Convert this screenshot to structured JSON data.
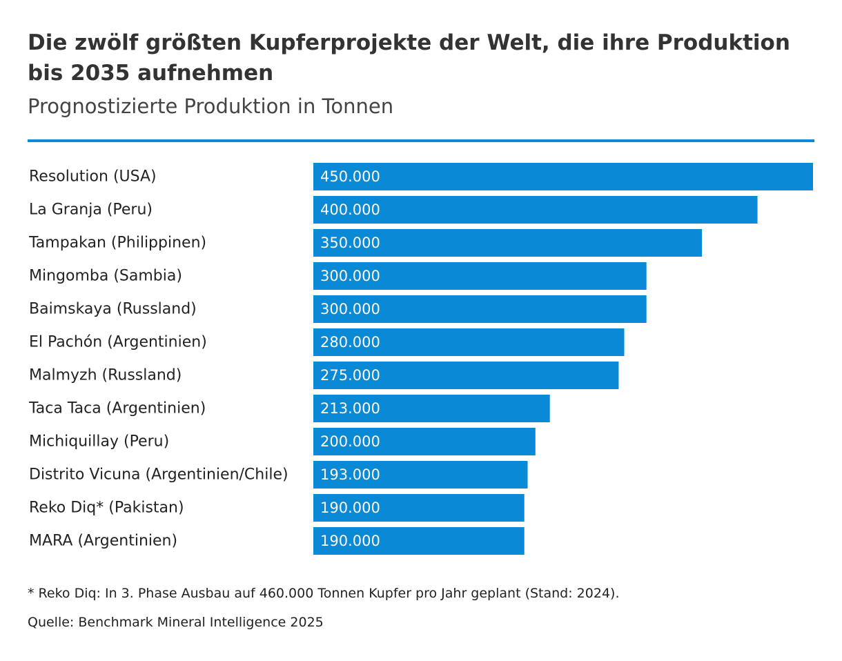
{
  "chart_data": {
    "type": "bar",
    "orientation": "horizontal",
    "title": "Die zwölf größten Kupferprojekte der Welt, die ihre Produktion bis 2035 aufnehmen",
    "subtitle": "Prognostizierte Produktion in Tonnen",
    "categories": [
      "Resolution (USA)",
      "La Granja (Peru)",
      "Tampakan (Philippinen)",
      "Mingomba (Sambia)",
      "Baimskaya (Russland)",
      "El Pachón (Argentinien)",
      "Malmyzh (Russland)",
      "Taca Taca (Argentinien)",
      "Michiquillay (Peru)",
      "Distrito Vicuna (Argentinien/Chile)",
      "Reko Diq* (Pakistan)",
      "MARA (Argentinien)"
    ],
    "values": [
      450000,
      400000,
      350000,
      300000,
      300000,
      280000,
      275000,
      213000,
      200000,
      193000,
      190000,
      190000
    ],
    "value_labels": [
      "450.000",
      "400.000",
      "350.000",
      "300.000",
      "300.000",
      "280.000",
      "275.000",
      "213.000",
      "200.000",
      "193.000",
      "190.000",
      "190.000"
    ],
    "xlim": [
      0,
      450000
    ],
    "xlabel": "",
    "ylabel": "",
    "grid": false,
    "bar_color": "#0a8ad6",
    "footnote": "* Reko Diq: In 3. Phase Ausbau auf 460.000 Tonnen Kupfer pro Jahr geplant (Stand: 2024).",
    "source": "Quelle: Benchmark Mineral Intelligence 2025"
  },
  "colors": {
    "accent": "#0a8ad6",
    "text": "#333333"
  }
}
